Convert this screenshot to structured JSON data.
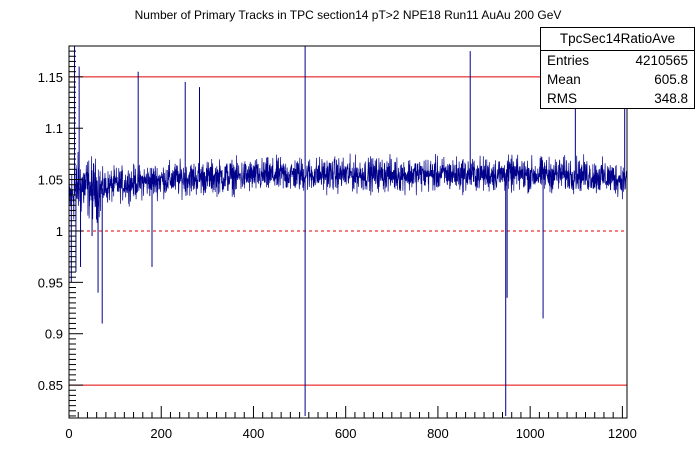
{
  "chart_data": {
    "type": "line",
    "title": "Number of Primary Tracks in TPC section14 pT>2 NPE18 Run11 AuAu 200 GeV",
    "xlabel": "",
    "ylabel": "",
    "xlim": [
      0,
      1210
    ],
    "ylim": [
      0.818,
      1.18
    ],
    "xticks": [
      0,
      200,
      400,
      600,
      800,
      1000,
      1200
    ],
    "xtick_labels": [
      "0",
      "200",
      "400",
      "600",
      "800",
      "1000",
      "1200"
    ],
    "yticks": [
      0.85,
      0.9,
      0.95,
      1.0,
      1.05,
      1.1,
      1.15
    ],
    "ytick_labels": [
      "0.85",
      "0.9",
      "0.95",
      "1",
      "1.05",
      "1.1",
      "1.15"
    ],
    "reference_lines": [
      {
        "y": 1.15,
        "style": "solid",
        "color": "#e00000"
      },
      {
        "y": 1.0,
        "style": "dashed",
        "color": "#e00000"
      },
      {
        "y": 0.85,
        "style": "solid",
        "color": "#e00000"
      }
    ],
    "series": [
      {
        "color": "#00008b",
        "baseline_segments": [
          {
            "x": [
              0,
              20,
              60,
              100,
              200,
              300
            ],
            "y": [
              1.03,
              1.045,
              1.04,
              1.045,
              1.05,
              1.052
            ]
          },
          {
            "x": [
              300,
              500,
              700,
              900,
              1100,
              1210
            ],
            "y": [
              1.052,
              1.055,
              1.055,
              1.055,
              1.055,
              1.05
            ]
          }
        ],
        "noise_amplitude": 0.024,
        "spikes": [
          {
            "x": 5,
            "y": 0.95
          },
          {
            "x": 12,
            "y": 1.18
          },
          {
            "x": 15,
            "y": 0.96
          },
          {
            "x": 22,
            "y": 1.16
          },
          {
            "x": 25,
            "y": 0.965
          },
          {
            "x": 50,
            "y": 0.995
          },
          {
            "x": 63,
            "y": 0.94
          },
          {
            "x": 72,
            "y": 0.91
          },
          {
            "x": 150,
            "y": 1.155
          },
          {
            "x": 180,
            "y": 0.965
          },
          {
            "x": 252,
            "y": 1.145
          },
          {
            "x": 283,
            "y": 1.14
          },
          {
            "x": 512,
            "y": 0.82
          },
          {
            "x": 512,
            "y": 1.18
          },
          {
            "x": 870,
            "y": 1.175
          },
          {
            "x": 947,
            "y": 0.82
          },
          {
            "x": 950,
            "y": 0.935
          },
          {
            "x": 1028,
            "y": 0.915
          },
          {
            "x": 1098,
            "y": 1.16
          },
          {
            "x": 1205,
            "y": 1.155
          }
        ]
      }
    ]
  },
  "stats_box": {
    "title": "TpcSec14RatioAve",
    "rows": [
      {
        "label": "Entries",
        "value": "4210565"
      },
      {
        "label": "Mean",
        "value": "605.8"
      },
      {
        "label": "RMS",
        "value": "348.8"
      }
    ]
  }
}
